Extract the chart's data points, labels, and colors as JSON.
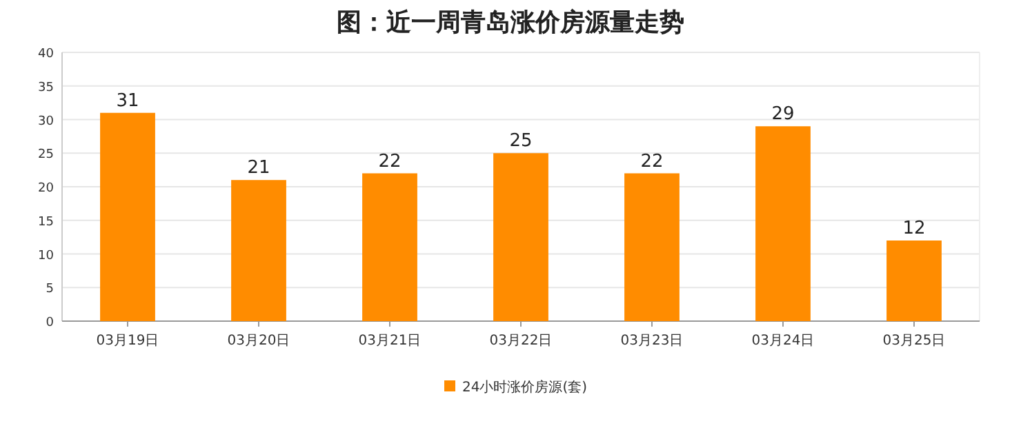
{
  "chart_data": {
    "type": "bar",
    "title": "图：近一周青岛涨价房源量走势",
    "categories": [
      "03月19日",
      "03月20日",
      "03月21日",
      "03月22日",
      "03月23日",
      "03月24日",
      "03月25日"
    ],
    "series": [
      {
        "name": "24小时涨价房源(套)",
        "color": "#ff8c00",
        "values": [
          31,
          21,
          22,
          25,
          22,
          29,
          12
        ]
      }
    ],
    "ylim": [
      0,
      40
    ],
    "yticks": [
      0,
      5,
      10,
      15,
      20,
      25,
      30,
      35,
      40
    ],
    "grid": "y",
    "legend": "bottom",
    "data_labels": true
  }
}
